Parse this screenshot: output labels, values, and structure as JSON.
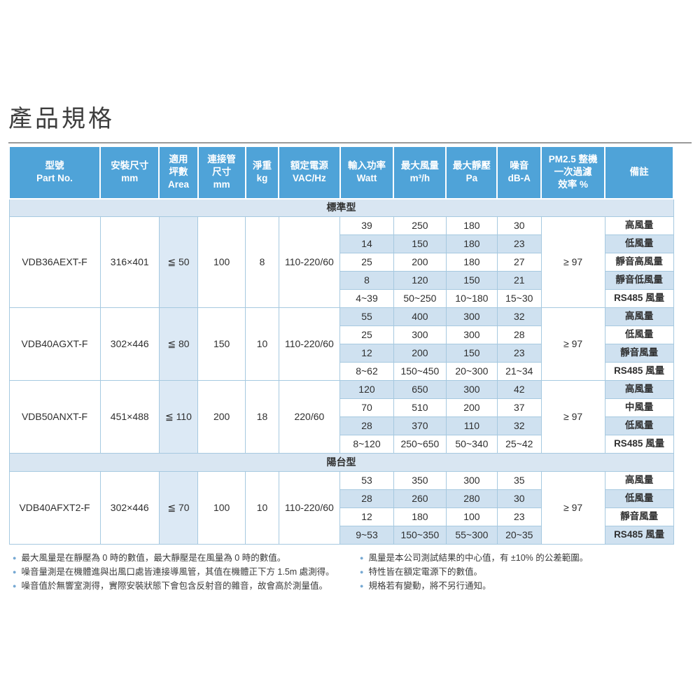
{
  "page": {
    "title": "產品規格"
  },
  "colors": {
    "header_bg": "#4fa3d8",
    "band_bg": "#d9e6f2",
    "alt_row_bg": "#cfe1f0",
    "area_col_bg": "#dce9f5",
    "cell_border": "#a6c9e0"
  },
  "table": {
    "headers": [
      "型號\nPart No.",
      "安裝尺寸\nmm",
      "適用\n坪數\nArea",
      "連接管\n尺寸\nmm",
      "淨重\nkg",
      "額定電源\nVAC/Hz",
      "輸入功率\nWatt",
      "最大風量\nm³/h",
      "最大靜壓\nPa",
      "噪音\ndB-A",
      "PM2.5 整機\n一次過濾\n效率 %",
      "備註"
    ],
    "sections": [
      {
        "name": "標準型",
        "models": [
          {
            "part_no": "VDB36AEXT-F",
            "install_size": "316×401",
            "area": "≦ 50",
            "duct_size": "100",
            "weight": "8",
            "power": "110-220/60",
            "pm25": "≥ 97",
            "rows": [
              {
                "watt": "39",
                "airflow": "250",
                "pressure": "180",
                "noise": "30",
                "note": "高風量"
              },
              {
                "watt": "14",
                "airflow": "150",
                "pressure": "180",
                "noise": "23",
                "note": "低風量"
              },
              {
                "watt": "25",
                "airflow": "200",
                "pressure": "180",
                "noise": "27",
                "note": "靜音高風量"
              },
              {
                "watt": "8",
                "airflow": "120",
                "pressure": "150",
                "noise": "21",
                "note": "靜音低風量"
              },
              {
                "watt": "4~39",
                "airflow": "50~250",
                "pressure": "10~180",
                "noise": "15~30",
                "note": "RS485 風量"
              }
            ]
          },
          {
            "part_no": "VDB40AGXT-F",
            "install_size": "302×446",
            "area": "≦ 80",
            "duct_size": "150",
            "weight": "10",
            "power": "110-220/60",
            "pm25": "≥ 97",
            "rows": [
              {
                "watt": "55",
                "airflow": "400",
                "pressure": "300",
                "noise": "32",
                "note": "高風量"
              },
              {
                "watt": "25",
                "airflow": "300",
                "pressure": "300",
                "noise": "28",
                "note": "低風量"
              },
              {
                "watt": "12",
                "airflow": "200",
                "pressure": "150",
                "noise": "23",
                "note": "靜音風量"
              },
              {
                "watt": "8~62",
                "airflow": "150~450",
                "pressure": "20~300",
                "noise": "21~34",
                "note": "RS485 風量"
              }
            ]
          },
          {
            "part_no": "VDB50ANXT-F",
            "install_size": "451×488",
            "area": "≦ 110",
            "duct_size": "200",
            "weight": "18",
            "power": "220/60",
            "pm25": "≥ 97",
            "rows": [
              {
                "watt": "120",
                "airflow": "650",
                "pressure": "300",
                "noise": "42",
                "note": "高風量"
              },
              {
                "watt": "70",
                "airflow": "510",
                "pressure": "200",
                "noise": "37",
                "note": "中風量"
              },
              {
                "watt": "28",
                "airflow": "370",
                "pressure": "110",
                "noise": "32",
                "note": "低風量"
              },
              {
                "watt": "8~120",
                "airflow": "250~650",
                "pressure": "50~340",
                "noise": "25~42",
                "note": "RS485 風量"
              }
            ]
          }
        ]
      },
      {
        "name": "陽台型",
        "models": [
          {
            "part_no": "VDB40AFXT2-F",
            "install_size": "302×446",
            "area": "≦ 70",
            "duct_size": "100",
            "weight": "10",
            "power": "110-220/60",
            "pm25": "≥ 97",
            "rows": [
              {
                "watt": "53",
                "airflow": "350",
                "pressure": "300",
                "noise": "35",
                "note": "高風量"
              },
              {
                "watt": "28",
                "airflow": "260",
                "pressure": "280",
                "noise": "30",
                "note": "低風量"
              },
              {
                "watt": "12",
                "airflow": "180",
                "pressure": "100",
                "noise": "23",
                "note": "靜音風量"
              },
              {
                "watt": "9~53",
                "airflow": "150~350",
                "pressure": "55~300",
                "noise": "20~35",
                "note": "RS485 風量"
              }
            ]
          }
        ]
      }
    ]
  },
  "footnotes": {
    "left": [
      "最大風量是在靜壓為 0 時的數值，最大靜壓是在風量為 0 時的數值。",
      "噪音量測是在機體進與出風口處皆連接導風管，其值在機體正下方 1.5m 處測得。",
      "噪音值於無響室測得，實際安裝狀態下會包含反射音的雜音，故會高於測量值。"
    ],
    "right": [
      "風量是本公司測試結果的中心值，有 ±10% 的公差範圍。",
      "特性皆在額定電源下的數值。",
      "規格若有變動，將不另行通知。"
    ]
  }
}
